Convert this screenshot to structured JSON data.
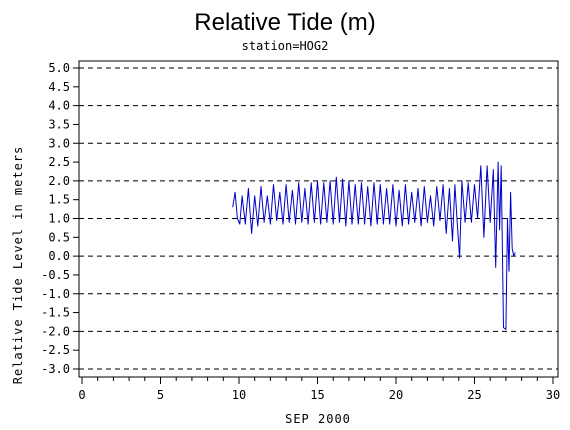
{
  "chart_data": {
    "type": "line",
    "title": "Relative Tide (m)",
    "subtitle": "station=HOG2",
    "xlabel": "SEP 2000",
    "ylabel": "Relative Tide Level in meters",
    "xlim": [
      0,
      30
    ],
    "ylim": [
      -3.0,
      5.0
    ],
    "x_ticks": [
      "0",
      "5",
      "10",
      "15",
      "20",
      "25",
      "30"
    ],
    "y_ticks": [
      "5.0",
      "4.5",
      "4.0",
      "3.5",
      "3.0",
      "2.5",
      "2.0",
      "1.5",
      "1.0",
      "0.5",
      "0.0",
      "-0.5",
      "-1.0",
      "-1.5",
      "-2.0",
      "-2.5",
      "-3.0"
    ],
    "grid_lines_y": [
      5.0,
      4.0,
      3.0,
      2.0,
      1.0,
      0.0,
      -1.0,
      -2.0,
      -3.0
    ],
    "grid": "dashed horizontal",
    "series": [
      {
        "color": "#0000cc",
        "x": [
          9.6,
          9.75,
          9.9,
          10.05,
          10.2,
          10.4,
          10.6,
          10.8,
          11.0,
          11.2,
          11.4,
          11.6,
          11.8,
          12.0,
          12.2,
          12.4,
          12.6,
          12.8,
          13.0,
          13.2,
          13.4,
          13.6,
          13.8,
          14.0,
          14.2,
          14.4,
          14.6,
          14.8,
          15.0,
          15.2,
          15.4,
          15.6,
          15.8,
          16.0,
          16.2,
          16.4,
          16.6,
          16.8,
          17.0,
          17.2,
          17.4,
          17.6,
          17.8,
          18.0,
          18.2,
          18.4,
          18.6,
          18.8,
          19.0,
          19.2,
          19.4,
          19.6,
          19.8,
          20.0,
          20.2,
          20.4,
          20.6,
          20.8,
          21.0,
          21.2,
          21.4,
          21.6,
          21.8,
          22.0,
          22.2,
          22.4,
          22.6,
          22.8,
          23.0,
          23.2,
          23.4,
          23.6,
          23.75,
          23.9,
          24.05,
          24.2,
          24.4,
          24.6,
          24.8,
          25.0,
          25.2,
          25.4,
          25.6,
          25.8,
          26.0,
          26.2,
          26.35,
          26.5,
          26.6,
          26.7,
          26.85,
          27.0,
          27.1,
          27.2,
          27.3,
          27.4,
          27.5,
          27.6
        ],
        "values": [
          1.3,
          1.7,
          1.0,
          0.85,
          1.6,
          0.85,
          1.8,
          0.6,
          1.6,
          0.8,
          1.85,
          0.9,
          1.6,
          0.85,
          1.9,
          0.95,
          1.7,
          0.85,
          1.9,
          0.9,
          1.75,
          0.85,
          1.95,
          0.9,
          1.8,
          0.85,
          1.95,
          0.9,
          2.0,
          0.85,
          1.95,
          0.9,
          2.0,
          0.85,
          2.1,
          0.9,
          2.05,
          0.8,
          2.0,
          0.85,
          1.9,
          0.85,
          1.95,
          0.85,
          1.85,
          0.8,
          1.95,
          0.85,
          1.9,
          0.85,
          1.8,
          0.85,
          1.9,
          0.8,
          1.75,
          0.8,
          1.9,
          0.85,
          1.7,
          0.9,
          1.8,
          0.8,
          1.85,
          0.9,
          1.6,
          0.8,
          1.85,
          0.95,
          1.9,
          0.6,
          1.8,
          0.4,
          1.9,
          0.9,
          -0.05,
          2.0,
          0.9,
          1.95,
          0.9,
          1.9,
          1.0,
          2.4,
          0.5,
          2.4,
          0.9,
          2.3,
          -0.3,
          2.5,
          0.7,
          2.4,
          -1.9,
          -1.95,
          1.0,
          -0.4,
          1.7,
          0.2,
          0.0,
          0.1
        ]
      }
    ]
  }
}
